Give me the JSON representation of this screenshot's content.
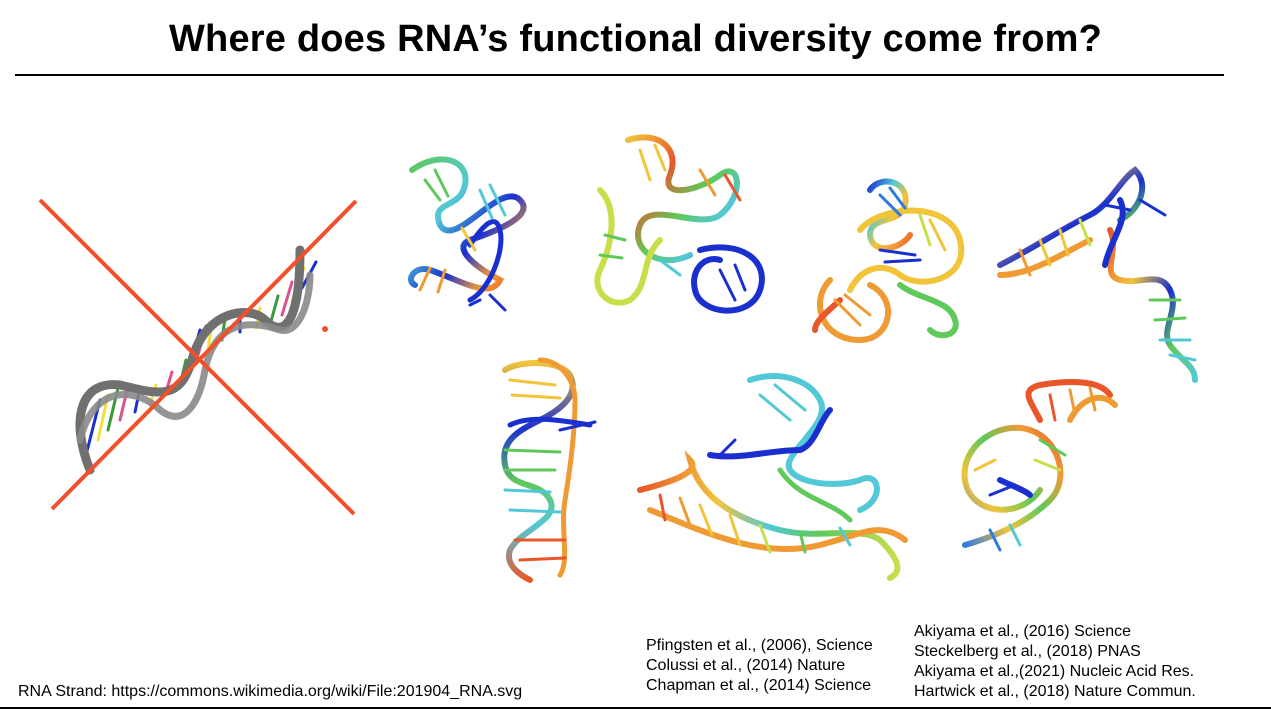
{
  "slide": {
    "title": "Where does RNA’s functional diversity come from?",
    "credit": "RNA Strand: https://commons.wikimedia.org/wiki/File:201904_RNA.svg",
    "references_left": [
      "Pfingsten et al., (2006), Science",
      "Colussi et al., (2014) Nature",
      "Chapman et al., (2014) Science"
    ],
    "references_right": [
      "Akiyama et al., (2016) Science",
      "Steckelberg et al., (2018) PNAS",
      "Akiyama et al.,(2021) Nucleic Acid Res.",
      "Hartwick et al., (2018) Nature Commun."
    ]
  },
  "images": {
    "helix": "rna-double-helix-crossed-out",
    "structures": [
      "rna-3d-structure-1",
      "rna-3d-structure-2",
      "rna-3d-structure-3",
      "rna-3d-structure-4",
      "rna-3d-structure-5",
      "rna-3d-structure-6",
      "rna-3d-structure-7"
    ]
  },
  "colors": {
    "cross": "#f0502a",
    "helix_backbone": "#777777",
    "rainbow": [
      "#1a2fd0",
      "#2f7ae0",
      "#53c8d6",
      "#5fc95a",
      "#c8df4a",
      "#f2c43a",
      "#f09a34",
      "#e9562a"
    ]
  }
}
